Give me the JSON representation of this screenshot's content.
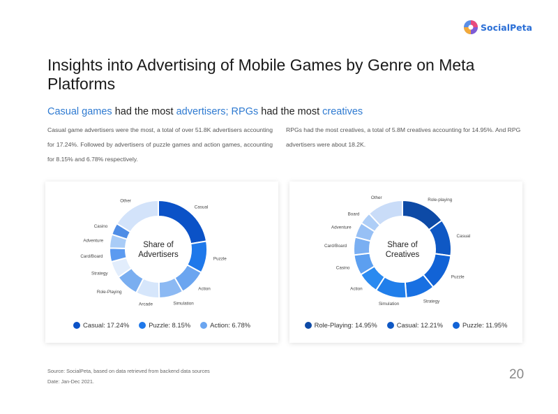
{
  "header": {
    "logo_text": "SocialPeta",
    "logo_colors": [
      "#e84a7d",
      "#5b8ee6",
      "#7e5bd6",
      "#f2a93b"
    ]
  },
  "title": "Insights into Advertising of Mobile Games by Genre on Meta Platforms",
  "subtitle": {
    "part1": "Casual games",
    "part2": " had the most ",
    "part3": "advertisers; RPGs",
    "part4": " had the most ",
    "part5": "creatives"
  },
  "paragraphs": {
    "left": "Casual game advertisers were the most, a total of over 51.8K advertisers accounting for 17.24%. Followed by advertisers of puzzle games and action games, accounting for 8.15% and 6.78% respectively.",
    "right": "RPGs had the most creatives, a total of 5.8M creatives accounting for 14.95%. And RPG advertisers were about 18.2K."
  },
  "chart_data": [
    {
      "type": "pie",
      "center_label": [
        "Share of",
        "Advertisers"
      ],
      "slices": [
        {
          "label": "Casual",
          "value": 17.24,
          "color": "#0b52c7"
        },
        {
          "label": "Puzzle",
          "value": 8.15,
          "color": "#1e78ea"
        },
        {
          "label": "Action",
          "value": 6.78,
          "color": "#6ba5f0"
        },
        {
          "label": "Simulation",
          "value": 6.2,
          "color": "#8cb9f3"
        },
        {
          "label": "Arcade",
          "value": 6.0,
          "color": "#d6e6fb"
        },
        {
          "label": "Role-Playing",
          "value": 6.0,
          "color": "#7aaef0"
        },
        {
          "label": "Strategy",
          "value": 4.3,
          "color": "#e2edfc"
        },
        {
          "label": "Card/Board",
          "value": 3.5,
          "color": "#5b9af0"
        },
        {
          "label": "Adventure",
          "value": 3.5,
          "color": "#a9ccf7"
        },
        {
          "label": "Casino",
          "value": 3.0,
          "color": "#4f8de6"
        },
        {
          "label": "Other",
          "value": 12.5,
          "color": "#d3e3fa"
        }
      ],
      "legend": [
        {
          "label": "Casual: 17.24%",
          "color": "#0b52c7"
        },
        {
          "label": "Puzzle: 8.15%",
          "color": "#1e78ea"
        },
        {
          "label": "Action: 6.78%",
          "color": "#6ba5f0"
        }
      ]
    },
    {
      "type": "pie",
      "center_label": [
        "Share of",
        "Creatives"
      ],
      "slices": [
        {
          "label": "Role-playing",
          "value": 14.95,
          "color": "#0d4aa6"
        },
        {
          "label": "Casual",
          "value": 12.21,
          "color": "#0f58c4"
        },
        {
          "label": "Puzzle",
          "value": 11.95,
          "color": "#1263d6"
        },
        {
          "label": "Strategy",
          "value": 9.6,
          "color": "#1870e2"
        },
        {
          "label": "Simulation",
          "value": 10.4,
          "color": "#207eea"
        },
        {
          "label": "Action",
          "value": 7.2,
          "color": "#2a8af0"
        },
        {
          "label": "Casino",
          "value": 6.8,
          "color": "#5c9ff0"
        },
        {
          "label": "Card/Board",
          "value": 5.9,
          "color": "#7aaff2"
        },
        {
          "label": "Adventure",
          "value": 5.0,
          "color": "#97c0f5"
        },
        {
          "label": "Board",
          "value": 4.0,
          "color": "#aecef7"
        },
        {
          "label": "Other",
          "value": 11.99,
          "color": "#c9dcf8"
        }
      ],
      "legend": [
        {
          "label": "Role-Playing: 14.95%",
          "color": "#0d4aa6"
        },
        {
          "label": "Casual: 12.21%",
          "color": "#0f58c4"
        },
        {
          "label": "Puzzle: 11.95%",
          "color": "#1263d6"
        }
      ]
    }
  ],
  "footer": {
    "source": "Source: SocialPeta, based on data retrieved from backend data sources",
    "date": "Date: Jan-Dec 2021.",
    "page_number": "20"
  }
}
